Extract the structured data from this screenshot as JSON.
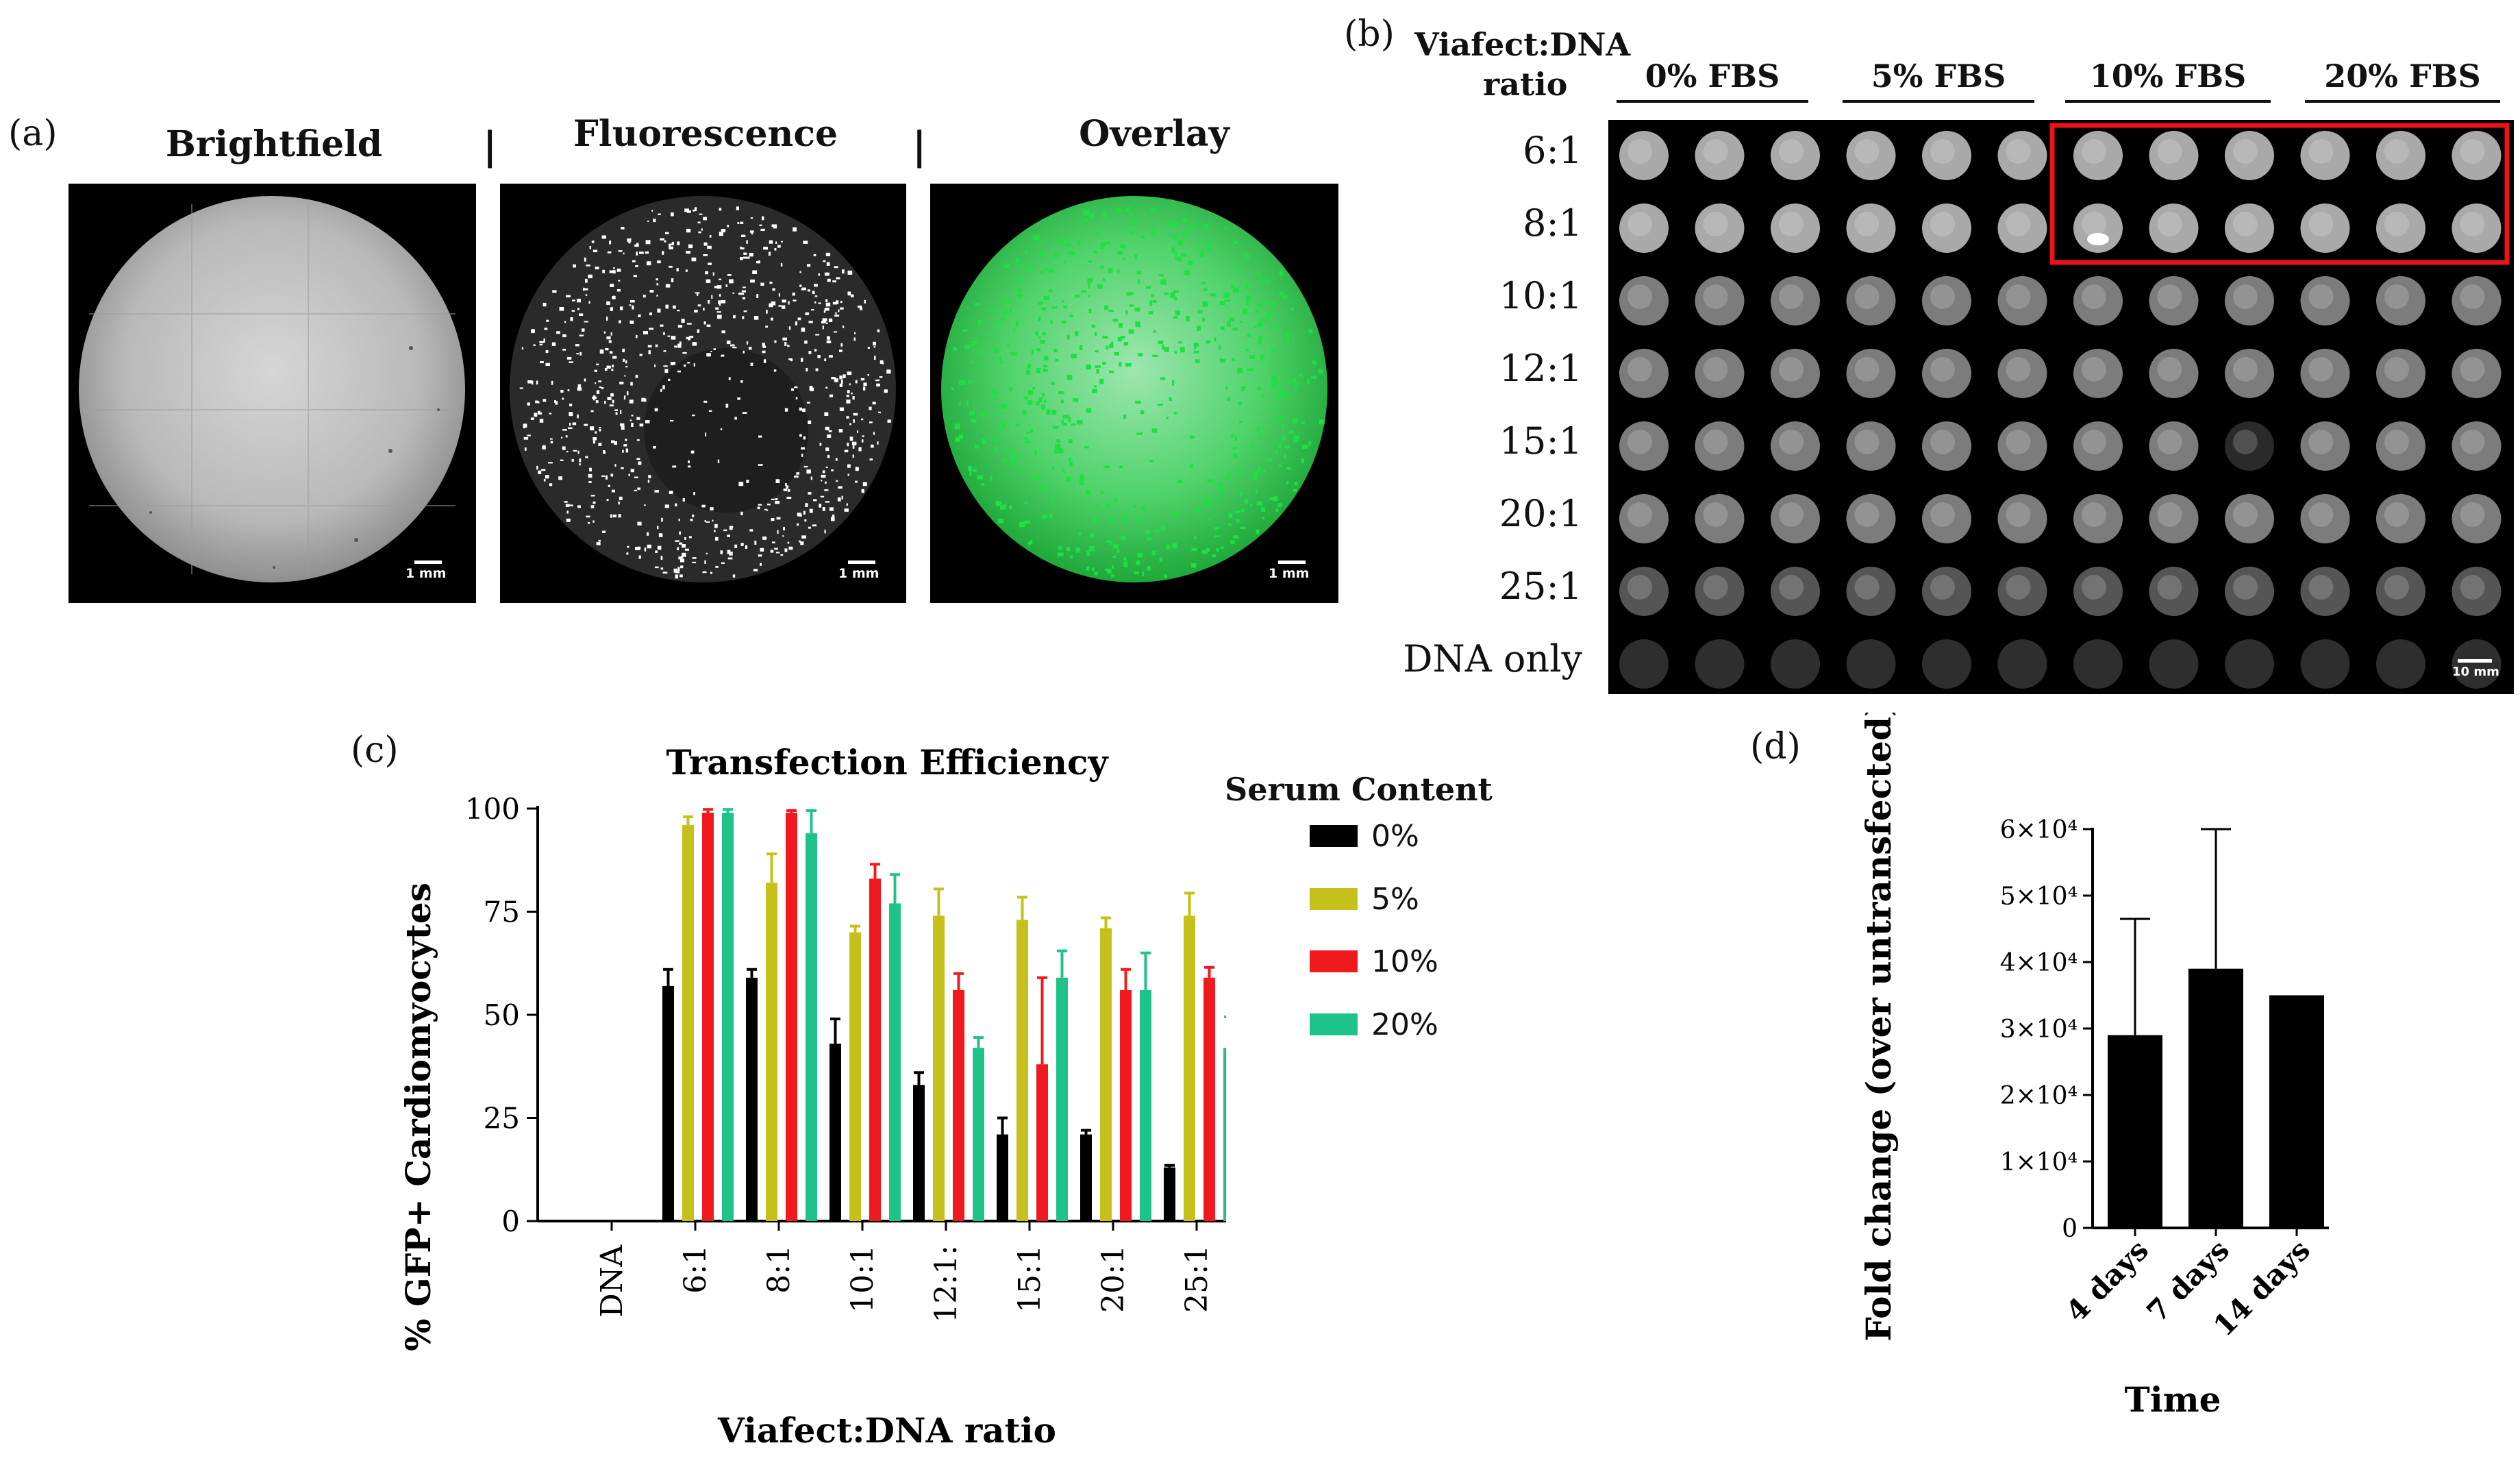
{
  "panel_a": {
    "letter": "(a)",
    "images": [
      {
        "title": "Brightfield",
        "scale": "1 mm"
      },
      {
        "title": "Fluorescence",
        "scale": "1 mm"
      },
      {
        "title": "Overlay",
        "scale": "1 mm"
      }
    ],
    "separator": "|"
  },
  "panel_b": {
    "letter": "(b)",
    "header_line1": "Viafect:DNA",
    "header_line2": "ratio",
    "groups": [
      "0% FBS",
      "5% FBS",
      "10% FBS",
      "20% FBS"
    ],
    "rows": [
      "6:1",
      "8:1",
      "10:1",
      "12:1",
      "15:1",
      "20:1",
      "25:1",
      "DNA only"
    ],
    "scale": "10 mm",
    "highlight_color": "#e8141c"
  },
  "panel_c": {
    "letter": "(c)",
    "legend_title": "Serum Content",
    "legend": [
      {
        "label": "0%",
        "color": "#000000"
      },
      {
        "label": "5%",
        "color": "#c6c11a"
      },
      {
        "label": "10%",
        "color": "#f01a1e"
      },
      {
        "label": "20%",
        "color": "#1ec38a"
      }
    ]
  },
  "panel_d": {
    "letter": "(d)",
    "bar_color": "#000000"
  },
  "chart_data": [
    {
      "type": "bar",
      "title": "Transfection Efficiency",
      "xlabel": "Viafect:DNA ratio",
      "ylabel": "% GFP+ Cardiomyocytes",
      "ylim": [
        0,
        100
      ],
      "yticks": [
        0,
        25,
        50,
        75,
        100
      ],
      "categories": [
        "DNA",
        "6:1",
        "8:1",
        "10:1",
        "12:1:",
        "15:1",
        "20:1",
        "25:1"
      ],
      "series": [
        {
          "name": "0%",
          "values": [
            0,
            57,
            59,
            43,
            33,
            21,
            21,
            13
          ],
          "errors": [
            0,
            4,
            2,
            6,
            3,
            4,
            1,
            0.5
          ]
        },
        {
          "name": "5%",
          "values": [
            0,
            96,
            82,
            70,
            74,
            73,
            71,
            74
          ],
          "errors": [
            0,
            2,
            7,
            1.5,
            6.5,
            5.5,
            2.5,
            5.5
          ]
        },
        {
          "name": "10%",
          "values": [
            0,
            99,
            99,
            83,
            56,
            38,
            56,
            59
          ],
          "errors": [
            0,
            0.8,
            0.5,
            3.5,
            4,
            21,
            5,
            2.5
          ]
        },
        {
          "name": "20%",
          "values": [
            0,
            99,
            94,
            77,
            42,
            59,
            56,
            42
          ],
          "errors": [
            0,
            0.8,
            5.5,
            7,
            2.5,
            6.5,
            9,
            7.5
          ]
        }
      ]
    },
    {
      "type": "bar",
      "title": "",
      "xlabel": "Time",
      "ylabel": "Fold change (over untransfected)",
      "ylim": [
        0,
        60000
      ],
      "yticks": [
        0,
        10000,
        20000,
        30000,
        40000,
        50000,
        60000
      ],
      "ytick_labels": [
        "0",
        "1×10⁴",
        "2×10⁴",
        "3×10⁴",
        "4×10⁴",
        "5×10⁴",
        "6×10⁴"
      ],
      "categories": [
        "4 days",
        "7 days",
        "14 days"
      ],
      "values": [
        29000,
        39000,
        35000
      ],
      "errors": [
        17500,
        21000,
        0
      ]
    }
  ]
}
